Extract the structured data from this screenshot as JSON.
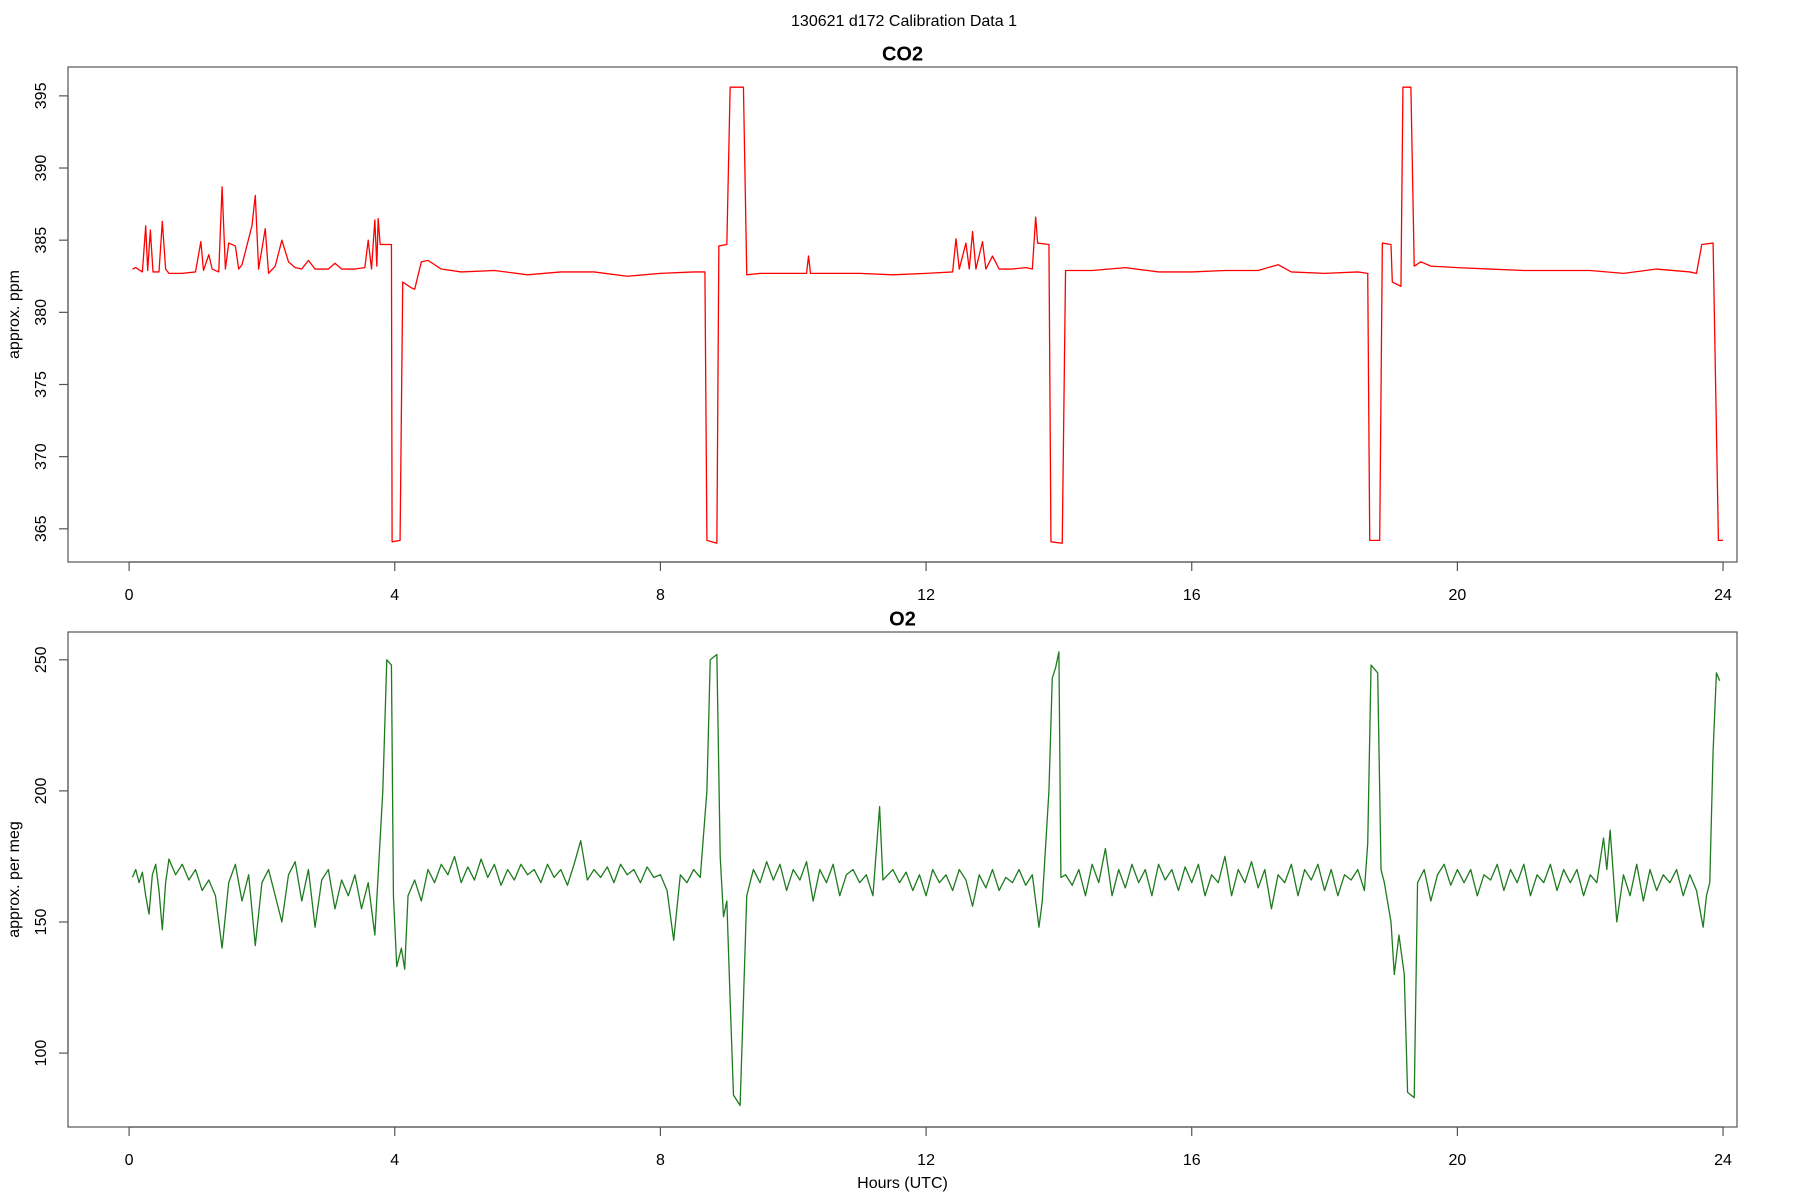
{
  "title": "130621   d172   Calibration Data 1",
  "chart_data": [
    {
      "type": "line",
      "title": "CO2",
      "ylabel": "approx. ppm",
      "color": "#ff0000",
      "xlim": [
        -0.92,
        24.21
      ],
      "xticks": [
        0,
        4,
        8,
        12,
        16,
        20,
        24
      ],
      "ylim": [
        362.7,
        397
      ],
      "yticks": [
        365,
        370,
        375,
        380,
        385,
        390,
        395
      ],
      "x": [
        0.05,
        0.1,
        0.2,
        0.25,
        0.28,
        0.32,
        0.36,
        0.45,
        0.5,
        0.55,
        0.6,
        0.8,
        1.0,
        1.08,
        1.12,
        1.2,
        1.25,
        1.35,
        1.4,
        1.45,
        1.5,
        1.6,
        1.65,
        1.7,
        1.85,
        1.9,
        1.95,
        2.05,
        2.1,
        2.2,
        2.3,
        2.4,
        2.5,
        2.6,
        2.7,
        2.8,
        3.0,
        3.1,
        3.2,
        3.4,
        3.55,
        3.6,
        3.65,
        3.7,
        3.73,
        3.75,
        3.78,
        3.95,
        3.96,
        4.08,
        4.12,
        4.25,
        4.3,
        4.4,
        4.5,
        4.7,
        5.0,
        5.5,
        6.0,
        6.5,
        7.0,
        7.5,
        8.0,
        8.5,
        8.67,
        8.7,
        8.85,
        8.88,
        9.0,
        9.05,
        9.25,
        9.3,
        9.5,
        10.0,
        10.2,
        10.23,
        10.26,
        10.5,
        11,
        11.5,
        12,
        12.4,
        12.45,
        12.5,
        12.6,
        12.65,
        12.7,
        12.75,
        12.85,
        12.9,
        13.0,
        13.1,
        13.3,
        13.5,
        13.6,
        13.65,
        13.68,
        13.85,
        13.88,
        14.05,
        14.1,
        14.5,
        15,
        15.5,
        16,
        16.5,
        17,
        17.3,
        17.5,
        18,
        18.5,
        18.65,
        18.68,
        18.83,
        18.87,
        19.0,
        19.02,
        19.15,
        19.18,
        19.3,
        19.35,
        19.45,
        19.6,
        20,
        20.5,
        21,
        21.5,
        22,
        22.5,
        23,
        23.5,
        23.6,
        23.68,
        23.85,
        23.93,
        24.0
      ],
      "values": [
        383,
        383.1,
        382.8,
        386,
        382.9,
        385.7,
        382.8,
        382.8,
        386.3,
        383,
        382.7,
        382.7,
        382.8,
        384.9,
        382.9,
        384,
        383,
        382.8,
        388.7,
        383,
        384.8,
        384.6,
        383,
        383.3,
        386,
        388.1,
        383,
        385.8,
        382.7,
        383.2,
        385,
        383.5,
        383.1,
        383,
        383.6,
        383,
        383,
        383.4,
        383,
        383,
        383.1,
        385,
        383,
        386.4,
        383.2,
        386.5,
        384.7,
        384.7,
        364.1,
        364.2,
        382.1,
        381.7,
        381.6,
        383.5,
        383.6,
        383,
        382.8,
        382.9,
        382.6,
        382.8,
        382.8,
        382.5,
        382.7,
        382.8,
        382.8,
        364.2,
        364,
        384.6,
        384.7,
        395.6,
        395.6,
        382.6,
        382.7,
        382.7,
        382.7,
        383.9,
        382.7,
        382.7,
        382.7,
        382.6,
        382.7,
        382.8,
        385.1,
        383,
        384.8,
        383,
        385.6,
        383,
        384.9,
        383,
        383.9,
        383,
        383,
        383.1,
        383,
        386.6,
        384.8,
        384.7,
        364.1,
        364,
        382.9,
        382.9,
        383.1,
        382.8,
        382.8,
        382.9,
        382.9,
        383.3,
        382.8,
        382.7,
        382.8,
        382.7,
        364.2,
        364.2,
        384.8,
        384.7,
        382.1,
        381.8,
        395.6,
        395.6,
        383.2,
        383.5,
        383.2,
        383.1,
        383,
        382.9,
        382.9,
        382.9,
        382.7,
        383,
        382.8,
        382.7,
        384.7,
        384.8,
        364.2,
        364.2
      ]
    },
    {
      "type": "line",
      "title": "O2",
      "ylabel": "approx. per meg",
      "xlabel": "Hours (UTC)",
      "color": "#1e7b1e",
      "xlim": [
        -0.92,
        24.21
      ],
      "xticks": [
        0,
        4,
        8,
        12,
        16,
        20,
        24
      ],
      "ylim": [
        71.8,
        260.6
      ],
      "yticks": [
        100,
        150,
        200,
        250
      ],
      "x": [
        0.05,
        0.1,
        0.15,
        0.2,
        0.25,
        0.3,
        0.35,
        0.4,
        0.45,
        0.5,
        0.55,
        0.6,
        0.7,
        0.8,
        0.9,
        1.0,
        1.1,
        1.2,
        1.3,
        1.4,
        1.5,
        1.6,
        1.7,
        1.8,
        1.9,
        2.0,
        2.1,
        2.2,
        2.3,
        2.4,
        2.5,
        2.6,
        2.7,
        2.8,
        2.9,
        3.0,
        3.1,
        3.2,
        3.3,
        3.4,
        3.5,
        3.6,
        3.7,
        3.75,
        3.82,
        3.88,
        3.95,
        3.98,
        4.03,
        4.1,
        4.15,
        4.2,
        4.3,
        4.4,
        4.5,
        4.6,
        4.7,
        4.8,
        4.9,
        5.0,
        5.1,
        5.2,
        5.3,
        5.4,
        5.5,
        5.6,
        5.7,
        5.8,
        5.9,
        6.0,
        6.1,
        6.2,
        6.3,
        6.4,
        6.5,
        6.6,
        6.7,
        6.8,
        6.9,
        7.0,
        7.1,
        7.2,
        7.3,
        7.4,
        7.5,
        7.6,
        7.7,
        7.8,
        7.9,
        8.0,
        8.1,
        8.2,
        8.3,
        8.4,
        8.5,
        8.6,
        8.7,
        8.75,
        8.85,
        8.9,
        8.95,
        9.0,
        9.05,
        9.1,
        9.2,
        9.25,
        9.3,
        9.4,
        9.5,
        9.6,
        9.7,
        9.8,
        9.9,
        10.0,
        10.1,
        10.2,
        10.3,
        10.4,
        10.5,
        10.6,
        10.7,
        10.8,
        10.9,
        11.0,
        11.1,
        11.2,
        11.3,
        11.35,
        11.5,
        11.6,
        11.7,
        11.8,
        11.9,
        12.0,
        12.1,
        12.2,
        12.3,
        12.4,
        12.5,
        12.6,
        12.7,
        12.8,
        12.9,
        13.0,
        13.1,
        13.2,
        13.3,
        13.4,
        13.5,
        13.6,
        13.7,
        13.75,
        13.85,
        13.9,
        13.95,
        14.0,
        14.03,
        14.1,
        14.2,
        14.3,
        14.4,
        14.5,
        14.6,
        14.7,
        14.8,
        14.9,
        15.0,
        15.1,
        15.2,
        15.3,
        15.4,
        15.5,
        15.6,
        15.7,
        15.8,
        15.9,
        16.0,
        16.1,
        16.2,
        16.3,
        16.4,
        16.5,
        16.6,
        16.7,
        16.8,
        16.9,
        17.0,
        17.1,
        17.2,
        17.3,
        17.4,
        17.5,
        17.6,
        17.7,
        17.8,
        17.9,
        18.0,
        18.1,
        18.2,
        18.3,
        18.4,
        18.5,
        18.6,
        18.65,
        18.7,
        18.8,
        18.85,
        18.9,
        19.0,
        19.05,
        19.12,
        19.2,
        19.25,
        19.35,
        19.4,
        19.5,
        19.6,
        19.7,
        19.8,
        19.9,
        20.0,
        20.1,
        20.2,
        20.3,
        20.4,
        20.5,
        20.6,
        20.7,
        20.8,
        20.9,
        21.0,
        21.1,
        21.2,
        21.3,
        21.4,
        21.5,
        21.6,
        21.7,
        21.8,
        21.9,
        22.0,
        22.1,
        22.2,
        22.25,
        22.3,
        22.4,
        22.5,
        22.6,
        22.7,
        22.8,
        22.9,
        23.0,
        23.1,
        23.2,
        23.3,
        23.4,
        23.5,
        23.6,
        23.7,
        23.75,
        23.8,
        23.85,
        23.9,
        23.95
      ],
      "values": [
        167,
        170,
        165,
        169,
        160,
        153,
        168,
        172,
        162,
        147,
        165,
        174,
        168,
        172,
        166,
        170,
        162,
        166,
        160,
        140,
        165,
        172,
        158,
        168,
        141,
        165,
        170,
        160,
        150,
        168,
        173,
        158,
        170,
        148,
        166,
        170,
        155,
        166,
        160,
        168,
        155,
        165,
        145,
        168,
        200,
        250,
        248,
        160,
        133,
        140,
        132,
        160,
        166,
        158,
        170,
        165,
        172,
        168,
        175,
        165,
        171,
        166,
        174,
        167,
        172,
        164,
        170,
        166,
        172,
        168,
        170,
        165,
        172,
        167,
        170,
        164,
        172,
        181,
        166,
        170,
        167,
        171,
        165,
        172,
        168,
        170,
        165,
        171,
        167,
        168,
        162,
        143,
        168,
        165,
        170,
        167,
        200,
        250,
        252,
        175,
        152,
        158,
        120,
        84,
        80,
        120,
        160,
        170,
        165,
        173,
        166,
        172,
        162,
        170,
        166,
        173,
        158,
        170,
        165,
        172,
        160,
        168,
        170,
        165,
        168,
        160,
        194,
        166,
        170,
        165,
        169,
        162,
        168,
        160,
        170,
        165,
        168,
        162,
        170,
        166,
        156,
        168,
        163,
        170,
        162,
        167,
        165,
        170,
        164,
        168,
        148,
        158,
        200,
        243,
        247,
        253,
        167,
        168,
        164,
        170,
        160,
        172,
        165,
        178,
        160,
        170,
        163,
        172,
        165,
        170,
        160,
        172,
        166,
        170,
        162,
        171,
        165,
        172,
        160,
        168,
        165,
        175,
        160,
        170,
        165,
        173,
        163,
        170,
        155,
        168,
        165,
        172,
        160,
        170,
        166,
        172,
        162,
        170,
        160,
        168,
        166,
        170,
        162,
        180,
        248,
        245,
        170,
        165,
        150,
        130,
        145,
        130,
        85,
        83,
        165,
        170,
        158,
        168,
        172,
        164,
        170,
        165,
        170,
        160,
        168,
        166,
        172,
        162,
        170,
        165,
        172,
        160,
        168,
        165,
        172,
        162,
        170,
        165,
        170,
        160,
        168,
        165,
        182,
        170,
        185,
        150,
        168,
        160,
        172,
        158,
        170,
        162,
        168,
        165,
        170,
        160,
        168,
        162,
        148,
        160,
        165,
        215,
        245,
        242
      ]
    }
  ]
}
